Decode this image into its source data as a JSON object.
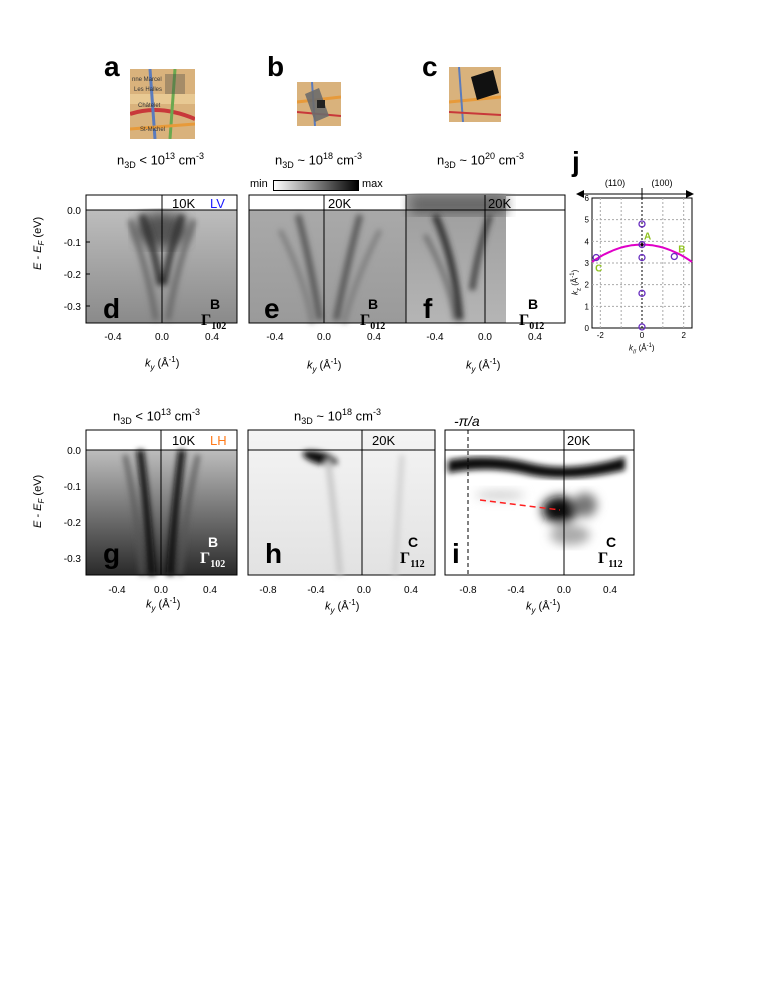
{
  "labels": {
    "a": "a",
    "b": "b",
    "c": "c",
    "d": "d",
    "e": "e",
    "f": "f",
    "g": "g",
    "h": "h",
    "i": "i",
    "j": "j"
  },
  "captions_top": {
    "a": {
      "base": "n",
      "sub": "3D",
      "rel": " < 10",
      "sup": "13",
      "unit": " cm",
      "unitsup": "-3"
    },
    "b": {
      "base": "n",
      "sub": "3D",
      "rel": " ~ 10",
      "sup": "18",
      "unit": " cm",
      "unitsup": "-3"
    },
    "c": {
      "base": "n",
      "sub": "3D",
      "rel": " ~ 10",
      "sup": "20",
      "unit": " cm",
      "unitsup": "-3"
    }
  },
  "captions_row2": {
    "g": {
      "base": "n",
      "sub": "3D",
      "rel": " < 10",
      "sup": "13",
      "unit": " cm",
      "unitsup": "-3"
    },
    "h": {
      "base": "n",
      "sub": "3D",
      "rel": " ~ 10",
      "sup": "18",
      "unit": " cm",
      "unitsup": "-3"
    }
  },
  "colorbar": {
    "min": "min",
    "max": "max"
  },
  "panels": {
    "d": {
      "temp": "10K",
      "pol": "LV",
      "pol_color": "#1a1aff",
      "point": "B",
      "gamma": "Γ",
      "gsub": "102"
    },
    "e": {
      "temp": "20K",
      "point": "B",
      "gamma": "Γ",
      "gsub": "012"
    },
    "f": {
      "temp": "20K",
      "point": "B",
      "gamma": "Γ",
      "gsub": "012"
    },
    "g": {
      "temp": "10K",
      "pol": "LH",
      "pol_color": "#ff7a1a",
      "point": "B",
      "gamma": "Γ",
      "gsub": "102"
    },
    "h": {
      "temp": "20K",
      "point": "C",
      "gamma": "Γ",
      "gsub": "112"
    },
    "i": {
      "temp": "20K",
      "point": "C",
      "gamma": "Γ",
      "gsub": "112",
      "top_label": "-π/a"
    }
  },
  "axes": {
    "ylabel": "E - E",
    "ylabel_sub": "F",
    "ylabel_unit": " (eV)",
    "xlabel": "k",
    "xlabel_sub": "y",
    "xlabel_unit": " (Å",
    "xlabel_sup": "-1",
    "xlabel_close": ")",
    "yticks": [
      "0.0",
      "-0.1",
      "-0.2",
      "-0.3"
    ],
    "xticks_row1": [
      "-0.4",
      "0.0",
      "0.4"
    ],
    "xticks_h": [
      "-0.8",
      "-0.4",
      "0.0",
      "0.4"
    ],
    "xticks_i": [
      "-0.8",
      "-0.4",
      "0.0",
      "0.4"
    ]
  },
  "panel_j": {
    "dir_left": "(110)",
    "dir_right": "(100)",
    "ylabel": "k",
    "ylabel_sub": "z",
    "ylabel_unit": " (Å",
    "ylabel_sup": "-1",
    "ylabel_close": ")",
    "xlabel": "k",
    "xlabel_sub": "//",
    "xlabel_unit": " (Å",
    "xlabel_sup": "-1",
    "xlabel_close": ")",
    "yticks": [
      "0",
      "1",
      "2",
      "3",
      "4",
      "5",
      "6"
    ],
    "xticks": [
      "-2",
      "0",
      "2"
    ],
    "points_label": {
      "A": "A",
      "B": "B",
      "C": "C"
    },
    "label_color": "#8fc31f",
    "curve_color": "#e000c8",
    "circle_color": "#6a2fc0"
  },
  "chart_data": {
    "type": "scatter",
    "title": "",
    "xlabel": "k// (Å-1)",
    "ylabel": "kz (Å-1)",
    "xlim": [
      -2.4,
      2.4
    ],
    "ylim": [
      0,
      6
    ],
    "series": [
      {
        "values": [
          [
            -2.2,
            3.25
          ],
          [
            0.0,
            4.8
          ],
          [
            0.0,
            3.85
          ],
          [
            0.0,
            3.25
          ],
          [
            0.0,
            1.6
          ],
          [
            0.0,
            0.05
          ],
          [
            1.55,
            3.3
          ]
        ]
      }
    ],
    "curve": {
      "kz_at_center": 3.85,
      "k_edge": 2.4,
      "kz_at_edge": 3.05
    },
    "points": {
      "A": [
        0.0,
        3.85
      ],
      "B": [
        1.55,
        3.3
      ],
      "C": [
        -2.2,
        3.25
      ]
    }
  }
}
